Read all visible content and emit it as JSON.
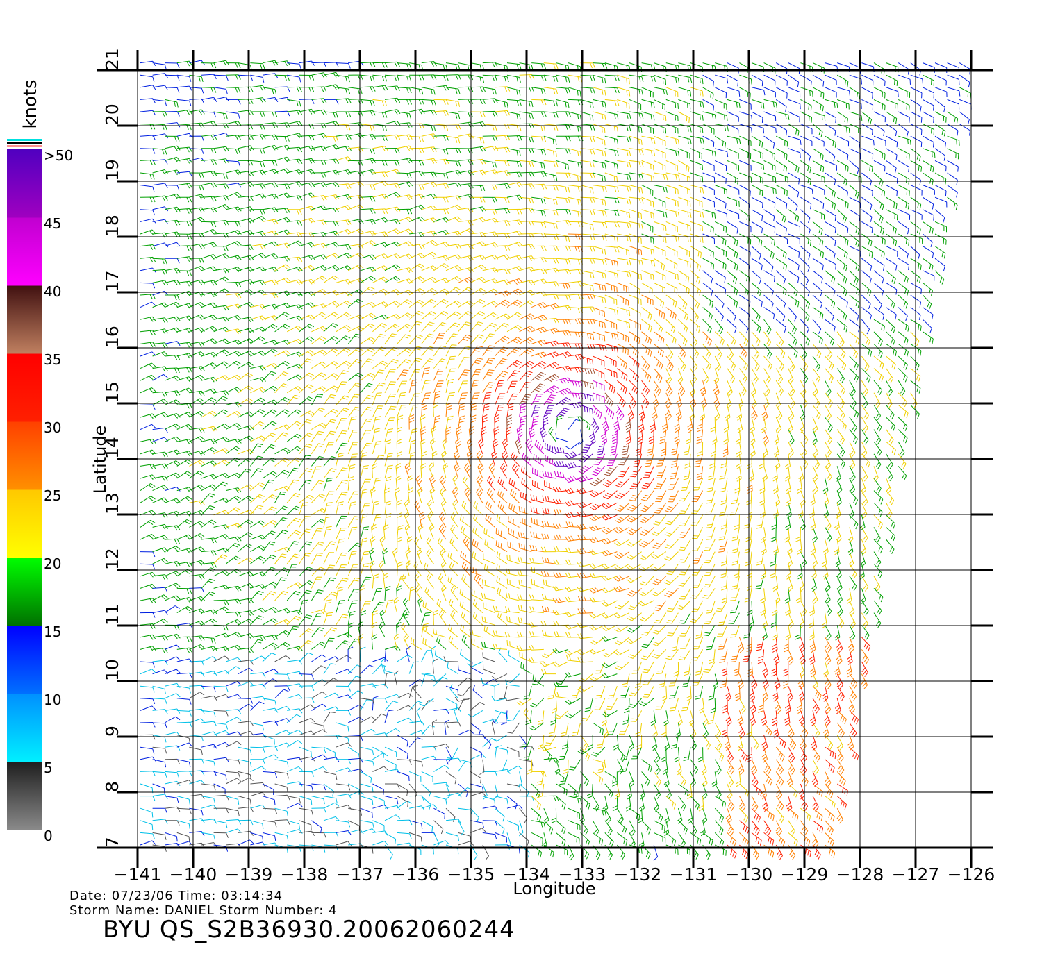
{
  "map": {
    "lon_range": [
      -141,
      -126
    ],
    "lat_range": [
      7,
      21
    ],
    "lon_ticks": [
      "−141",
      "−140",
      "−139",
      "−138",
      "−137",
      "−136",
      "−135",
      "−134",
      "−133",
      "−132",
      "−131",
      "−130",
      "−129",
      "−128",
      "−127",
      "−126"
    ],
    "lat_ticks": [
      "7",
      "8",
      "9",
      "10",
      "11",
      "12",
      "13",
      "14",
      "15",
      "16",
      "17",
      "18",
      "19",
      "20",
      "21"
    ],
    "xlabel": "Longitude",
    "ylabel": "Latitude",
    "storm_center": [
      -133.2,
      14.5
    ],
    "swath_east_edge": "sloping from -126 at 21N to -128.5 at 7N"
  },
  "legend": {
    "unit": "knots",
    "labels": [
      ">50",
      "45",
      "40",
      "35",
      "30",
      "25",
      "20",
      "15",
      "10",
      "5",
      "0"
    ],
    "bands": [
      {
        "range": [
          0,
          5
        ],
        "colors": [
          "#8a8a8a",
          "#1e1e1e"
        ]
      },
      {
        "range": [
          5,
          10
        ],
        "colors": [
          "#00f0ff",
          "#0090ff"
        ]
      },
      {
        "range": [
          10,
          15
        ],
        "colors": [
          "#0070ff",
          "#0000ff"
        ]
      },
      {
        "range": [
          15,
          20
        ],
        "colors": [
          "#007000",
          "#00ff00"
        ]
      },
      {
        "range": [
          20,
          25
        ],
        "colors": [
          "#ffff00",
          "#ffc800"
        ]
      },
      {
        "range": [
          25,
          30
        ],
        "colors": [
          "#ff9000",
          "#ff4000"
        ]
      },
      {
        "range": [
          30,
          35
        ],
        "colors": [
          "#ff2000",
          "#ff0000"
        ]
      },
      {
        "range": [
          35,
          40
        ],
        "colors": [
          "#c08060",
          "#401010"
        ]
      },
      {
        "range": [
          40,
          45
        ],
        "colors": [
          "#ff00ff",
          "#c000d0"
        ]
      },
      {
        "range": [
          45,
          50
        ],
        "colors": [
          "#a000c0",
          "#5000c0"
        ]
      }
    ]
  },
  "info": {
    "date_line": "Date: 07/23/06   Time: 03:14:34",
    "storm_line": "Storm Name: DANIEL   Storm Number: 4",
    "title": "BYU  QS_S2B36930.20062060244"
  }
}
